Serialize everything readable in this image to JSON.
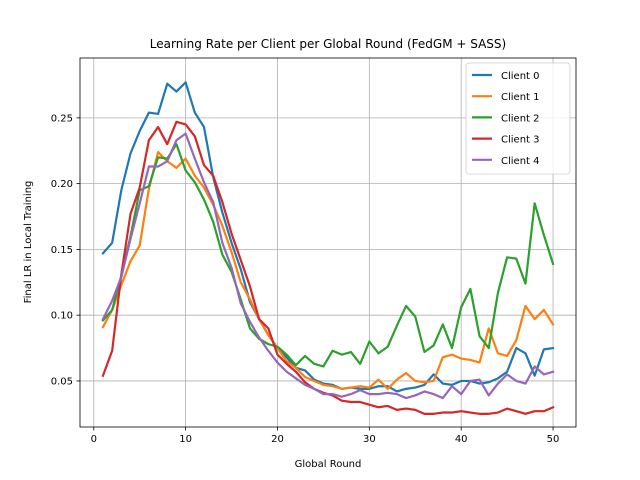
{
  "chart_data": {
    "type": "line",
    "title": "Learning Rate per Client per Global Round (FedGM + SASS)",
    "xlabel": "Global Round",
    "ylabel": "Final LR in Local Training",
    "xlim": [
      -1.5,
      52.5
    ],
    "ylim": [
      0.015,
      0.2955
    ],
    "xticks": [
      0,
      10,
      20,
      30,
      40,
      50
    ],
    "yticks": [
      0.05,
      0.1,
      0.15,
      0.2,
      0.25
    ],
    "ytick_labels": [
      "0.05",
      "0.10",
      "0.15",
      "0.20",
      "0.25"
    ],
    "grid": true,
    "legend_position": "top-right",
    "x": [
      1,
      2,
      3,
      4,
      5,
      6,
      7,
      8,
      9,
      10,
      11,
      12,
      13,
      14,
      15,
      16,
      17,
      18,
      19,
      20,
      21,
      22,
      23,
      24,
      25,
      26,
      27,
      28,
      29,
      30,
      31,
      32,
      33,
      34,
      35,
      36,
      37,
      38,
      39,
      40,
      41,
      42,
      43,
      44,
      45,
      46,
      47,
      48,
      49,
      50
    ],
    "series": [
      {
        "name": "Client 0",
        "color": "#1f77b4",
        "values": [
          0.147,
          0.155,
          0.195,
          0.223,
          0.24,
          0.254,
          0.253,
          0.276,
          0.27,
          0.277,
          0.254,
          0.243,
          0.205,
          0.178,
          0.155,
          0.135,
          0.11,
          0.097,
          0.085,
          0.075,
          0.068,
          0.06,
          0.058,
          0.051,
          0.048,
          0.047,
          0.044,
          0.045,
          0.044,
          0.044,
          0.046,
          0.046,
          0.042,
          0.044,
          0.045,
          0.047,
          0.055,
          0.048,
          0.047,
          0.05,
          0.05,
          0.048,
          0.049,
          0.052,
          0.057,
          0.075,
          0.071,
          0.054,
          0.074,
          0.075
        ]
      },
      {
        "name": "Client 1",
        "color": "#ff7f0e",
        "values": [
          0.091,
          0.104,
          0.123,
          0.141,
          0.153,
          0.196,
          0.224,
          0.217,
          0.212,
          0.219,
          0.206,
          0.197,
          0.184,
          0.168,
          0.148,
          0.125,
          0.112,
          0.097,
          0.085,
          0.075,
          0.065,
          0.06,
          0.053,
          0.05,
          0.047,
          0.046,
          0.044,
          0.045,
          0.046,
          0.045,
          0.051,
          0.044,
          0.051,
          0.056,
          0.05,
          0.049,
          0.05,
          0.068,
          0.07,
          0.067,
          0.066,
          0.064,
          0.09,
          0.071,
          0.069,
          0.081,
          0.107,
          0.097,
          0.104,
          0.093
        ]
      },
      {
        "name": "Client 2",
        "color": "#2ca02c",
        "values": [
          0.096,
          0.104,
          0.13,
          0.16,
          0.195,
          0.198,
          0.22,
          0.219,
          0.23,
          0.21,
          0.201,
          0.188,
          0.171,
          0.146,
          0.133,
          0.112,
          0.09,
          0.082,
          0.078,
          0.076,
          0.07,
          0.062,
          0.069,
          0.063,
          0.061,
          0.073,
          0.07,
          0.072,
          0.063,
          0.08,
          0.071,
          0.076,
          0.092,
          0.107,
          0.099,
          0.072,
          0.077,
          0.093,
          0.075,
          0.106,
          0.12,
          0.084,
          0.075,
          0.117,
          0.144,
          0.143,
          0.124,
          0.185,
          0.161,
          0.139
        ]
      },
      {
        "name": "Client 3",
        "color": "#d62728",
        "values": [
          0.054,
          0.073,
          0.131,
          0.177,
          0.197,
          0.233,
          0.243,
          0.23,
          0.247,
          0.245,
          0.236,
          0.214,
          0.206,
          0.186,
          0.162,
          0.142,
          0.122,
          0.097,
          0.09,
          0.07,
          0.063,
          0.057,
          0.049,
          0.044,
          0.041,
          0.039,
          0.035,
          0.034,
          0.034,
          0.032,
          0.03,
          0.031,
          0.028,
          0.029,
          0.028,
          0.025,
          0.025,
          0.026,
          0.026,
          0.027,
          0.026,
          0.025,
          0.025,
          0.026,
          0.029,
          0.027,
          0.025,
          0.027,
          0.027,
          0.03
        ]
      },
      {
        "name": "Client 4",
        "color": "#9467bd",
        "values": [
          0.097,
          0.111,
          0.129,
          0.158,
          0.185,
          0.213,
          0.213,
          0.217,
          0.233,
          0.238,
          0.219,
          0.201,
          0.186,
          0.155,
          0.136,
          0.109,
          0.095,
          0.083,
          0.073,
          0.064,
          0.057,
          0.052,
          0.047,
          0.044,
          0.04,
          0.04,
          0.038,
          0.04,
          0.043,
          0.04,
          0.04,
          0.041,
          0.04,
          0.037,
          0.039,
          0.042,
          0.04,
          0.037,
          0.046,
          0.04,
          0.05,
          0.051,
          0.039,
          0.048,
          0.055,
          0.05,
          0.048,
          0.061,
          0.055,
          0.057
        ]
      }
    ]
  }
}
